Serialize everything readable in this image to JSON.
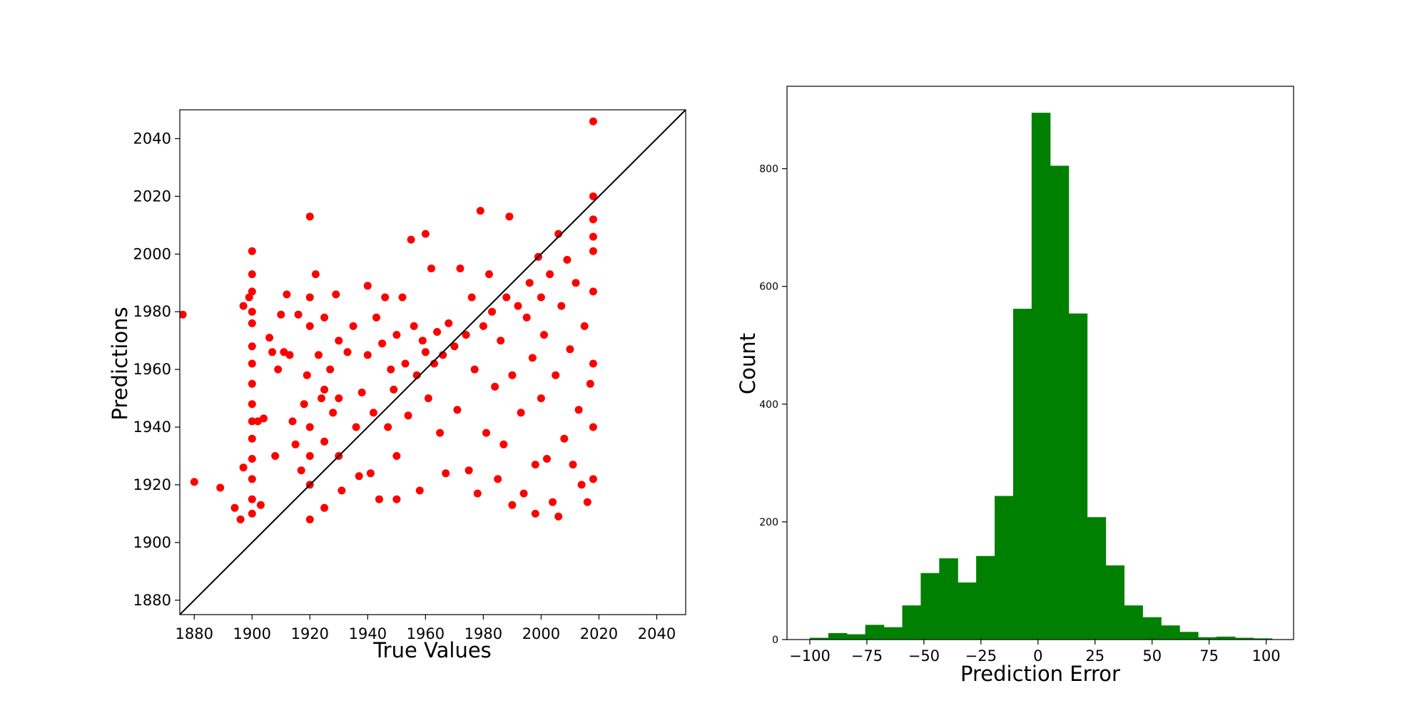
{
  "chart_data": [
    {
      "type": "scatter",
      "xlabel": "True Values",
      "ylabel": "Predictions",
      "xlim": [
        1875,
        2050
      ],
      "ylim": [
        1875,
        2050
      ],
      "xticks": [
        "1880",
        "1900",
        "1920",
        "1940",
        "1960",
        "1980",
        "2000",
        "2020",
        "2040"
      ],
      "yticks": [
        "1880",
        "1900",
        "1920",
        "1940",
        "1960",
        "1980",
        "2000",
        "2020",
        "2040"
      ],
      "point_color": "#ff0000",
      "reference_line": {
        "from": [
          1875,
          1875
        ],
        "to": [
          2050,
          2050
        ],
        "color": "#000000"
      },
      "series": [
        {
          "points": [
            [
              1876,
              1979
            ],
            [
              1880,
              1921
            ],
            [
              1889,
              1919
            ],
            [
              1894,
              1912
            ],
            [
              1896,
              1908
            ],
            [
              1897,
              1926
            ],
            [
              1897,
              1982
            ],
            [
              1899,
              1985
            ],
            [
              1900,
              2001
            ],
            [
              1900,
              1993
            ],
            [
              1900,
              1987
            ],
            [
              1900,
              1980
            ],
            [
              1900,
              1976
            ],
            [
              1900,
              1968
            ],
            [
              1900,
              1962
            ],
            [
              1900,
              1955
            ],
            [
              1900,
              1948
            ],
            [
              1900,
              1942
            ],
            [
              1900,
              1936
            ],
            [
              1900,
              1929
            ],
            [
              1900,
              1922
            ],
            [
              1900,
              1915
            ],
            [
              1900,
              1910
            ],
            [
              1902,
              1942
            ],
            [
              1903,
              1913
            ],
            [
              1904,
              1943
            ],
            [
              1906,
              1971
            ],
            [
              1907,
              1966
            ],
            [
              1908,
              1930
            ],
            [
              1909,
              1960
            ],
            [
              1910,
              1979
            ],
            [
              1911,
              1966
            ],
            [
              1912,
              1986
            ],
            [
              1913,
              1965
            ],
            [
              1914,
              1942
            ],
            [
              1915,
              1934
            ],
            [
              1916,
              1979
            ],
            [
              1917,
              1925
            ],
            [
              1918,
              1948
            ],
            [
              1919,
              1958
            ],
            [
              1920,
              2013
            ],
            [
              1920,
              1985
            ],
            [
              1920,
              1975
            ],
            [
              1920,
              1940
            ],
            [
              1920,
              1930
            ],
            [
              1920,
              1920
            ],
            [
              1920,
              1908
            ],
            [
              1922,
              1993
            ],
            [
              1923,
              1965
            ],
            [
              1924,
              1950
            ],
            [
              1925,
              1978
            ],
            [
              1925,
              1953
            ],
            [
              1925,
              1935
            ],
            [
              1925,
              1912
            ],
            [
              1927,
              1960
            ],
            [
              1928,
              1945
            ],
            [
              1929,
              1986
            ],
            [
              1930,
              1970
            ],
            [
              1930,
              1950
            ],
            [
              1930,
              1930
            ],
            [
              1931,
              1918
            ],
            [
              1933,
              1966
            ],
            [
              1935,
              1975
            ],
            [
              1936,
              1940
            ],
            [
              1937,
              1923
            ],
            [
              1938,
              1952
            ],
            [
              1940,
              1989
            ],
            [
              1940,
              1965
            ],
            [
              1941,
              1924
            ],
            [
              1942,
              1945
            ],
            [
              1943,
              1978
            ],
            [
              1944,
              1915
            ],
            [
              1945,
              1969
            ],
            [
              1946,
              1985
            ],
            [
              1947,
              1940
            ],
            [
              1948,
              1960
            ],
            [
              1949,
              1953
            ],
            [
              1950,
              1972
            ],
            [
              1950,
              1930
            ],
            [
              1950,
              1915
            ],
            [
              1952,
              1985
            ],
            [
              1953,
              1962
            ],
            [
              1954,
              1944
            ],
            [
              1955,
              2005
            ],
            [
              1956,
              1975
            ],
            [
              1957,
              1958
            ],
            [
              1958,
              1918
            ],
            [
              1959,
              1970
            ],
            [
              1960,
              2007
            ],
            [
              1960,
              1966
            ],
            [
              1961,
              1950
            ],
            [
              1962,
              1995
            ],
            [
              1963,
              1962
            ],
            [
              1964,
              1973
            ],
            [
              1965,
              1938
            ],
            [
              1966,
              1965
            ],
            [
              1967,
              1924
            ],
            [
              1968,
              1976
            ],
            [
              1970,
              1968
            ],
            [
              1971,
              1946
            ],
            [
              1972,
              1995
            ],
            [
              1974,
              1972
            ],
            [
              1975,
              1925
            ],
            [
              1976,
              1985
            ],
            [
              1977,
              1960
            ],
            [
              1978,
              1917
            ],
            [
              1979,
              2015
            ],
            [
              1980,
              1975
            ],
            [
              1981,
              1938
            ],
            [
              1982,
              1993
            ],
            [
              1983,
              1980
            ],
            [
              1984,
              1954
            ],
            [
              1985,
              1922
            ],
            [
              1986,
              1970
            ],
            [
              1987,
              1934
            ],
            [
              1988,
              1985
            ],
            [
              1989,
              2013
            ],
            [
              1990,
              1958
            ],
            [
              1990,
              1913
            ],
            [
              1992,
              1982
            ],
            [
              1993,
              1945
            ],
            [
              1994,
              1917
            ],
            [
              1995,
              1978
            ],
            [
              1996,
              1990
            ],
            [
              1997,
              1964
            ],
            [
              1998,
              1927
            ],
            [
              1998,
              1910
            ],
            [
              1999,
              1999
            ],
            [
              2000,
              1985
            ],
            [
              2000,
              1950
            ],
            [
              2001,
              1972
            ],
            [
              2002,
              1929
            ],
            [
              2003,
              1993
            ],
            [
              2004,
              1914
            ],
            [
              2005,
              1958
            ],
            [
              2006,
              2007
            ],
            [
              2006,
              1909
            ],
            [
              2007,
              1982
            ],
            [
              2008,
              1936
            ],
            [
              2009,
              1998
            ],
            [
              2010,
              1967
            ],
            [
              2011,
              1927
            ],
            [
              2012,
              1990
            ],
            [
              2013,
              1946
            ],
            [
              2014,
              1920
            ],
            [
              2015,
              1975
            ],
            [
              2016,
              1914
            ],
            [
              2017,
              1955
            ],
            [
              2018,
              2046
            ],
            [
              2018,
              2020
            ],
            [
              2018,
              2012
            ],
            [
              2018,
              2006
            ],
            [
              2018,
              2001
            ],
            [
              2018,
              1987
            ],
            [
              2018,
              1962
            ],
            [
              2018,
              1940
            ],
            [
              2018,
              1922
            ]
          ]
        }
      ]
    },
    {
      "type": "bar",
      "xlabel": "Prediction Error",
      "ylabel": "Count",
      "xlim": [
        -110,
        112
      ],
      "ylim": [
        0,
        940
      ],
      "xticks": [
        "−100",
        "−75",
        "−50",
        "−25",
        "0",
        "25",
        "50",
        "75",
        "100"
      ],
      "yticks": [
        "0",
        "200",
        "400",
        "600",
        "800"
      ],
      "bar_color": "#008000",
      "bin_width": 8.1,
      "bin_starts": [
        -100,
        -91.9,
        -83.8,
        -75.7,
        -67.6,
        -59.5,
        -51.4,
        -43.3,
        -35.2,
        -27.1,
        -19,
        -10.9,
        -2.8,
        5.3,
        13.4,
        21.5,
        29.6,
        37.7,
        45.8,
        53.9,
        62,
        70.1,
        78.2,
        86.3,
        94.4
      ],
      "values": [
        3,
        11,
        9,
        25,
        21,
        58,
        113,
        138,
        97,
        142,
        244,
        562,
        895,
        805,
        554,
        208,
        126,
        58,
        38,
        24,
        13,
        4,
        5,
        3,
        2
      ]
    }
  ]
}
